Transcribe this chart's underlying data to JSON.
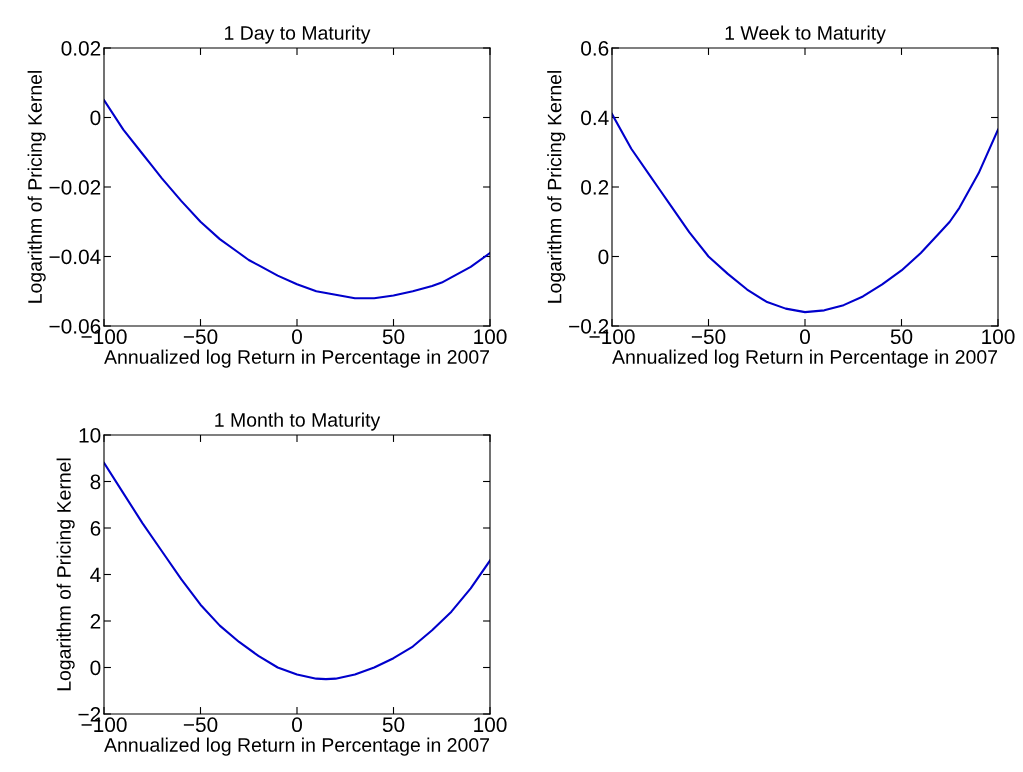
{
  "chart_data": [
    {
      "type": "line",
      "title": "1 Day to Maturity",
      "xlabel": "Annualized log Return in Percentage in 2007",
      "ylabel": "Logarithm of Pricing Kernel",
      "x": [
        -100,
        -90,
        -80,
        -75,
        -70,
        -60,
        -50,
        -40,
        -30,
        -25,
        -20,
        -10,
        0,
        10,
        20,
        25,
        30,
        35,
        40,
        50,
        60,
        70,
        75,
        80,
        90,
        100
      ],
      "series": [
        {
          "color": "#0000cc",
          "values": [
            0.005,
            -0.0035,
            -0.0105,
            -0.014,
            -0.0175,
            -0.024,
            -0.03,
            -0.035,
            -0.039,
            -0.041,
            -0.0425,
            -0.0455,
            -0.048,
            -0.05,
            -0.051,
            -0.0515,
            -0.052,
            -0.052,
            -0.052,
            -0.0512,
            -0.05,
            -0.0485,
            -0.0475,
            -0.046,
            -0.043,
            -0.039
          ]
        }
      ],
      "xlim": [
        -100,
        100
      ],
      "xticks": [
        -100,
        -50,
        0,
        50,
        100
      ],
      "ylim": [
        -0.06,
        0.02
      ],
      "yticks": [
        -0.06,
        -0.04,
        -0.02,
        0,
        0.02
      ],
      "grid": false,
      "legend": false
    },
    {
      "type": "line",
      "title": "1 Week to Maturity",
      "xlabel": "Annualized log Return in Percentage in 2007",
      "ylabel": "Logarithm of Pricing Kernel",
      "x": [
        -100,
        -90,
        -80,
        -75,
        -70,
        -60,
        -50,
        -40,
        -30,
        -20,
        -10,
        0,
        10,
        20,
        30,
        40,
        50,
        60,
        70,
        75,
        80,
        90,
        100
      ],
      "series": [
        {
          "color": "#0000cc",
          "values": [
            0.41,
            0.31,
            0.23,
            0.19,
            0.15,
            0.07,
            0.0,
            -0.05,
            -0.095,
            -0.13,
            -0.15,
            -0.16,
            -0.155,
            -0.14,
            -0.115,
            -0.08,
            -0.04,
            0.01,
            0.07,
            0.1,
            0.14,
            0.24,
            0.365
          ]
        }
      ],
      "xlim": [
        -100,
        100
      ],
      "xticks": [
        -100,
        -50,
        0,
        50,
        100
      ],
      "ylim": [
        -0.2,
        0.6
      ],
      "yticks": [
        -0.2,
        0,
        0.2,
        0.4,
        0.6
      ],
      "grid": false,
      "legend": false
    },
    {
      "type": "line",
      "title": "1 Month to Maturity",
      "xlabel": "Annualized log Return in Percentage in 2007",
      "ylabel": "Logarithm of Pricing Kernel",
      "x": [
        -100,
        -90,
        -80,
        -70,
        -60,
        -50,
        -40,
        -30,
        -20,
        -10,
        0,
        10,
        15,
        20,
        30,
        40,
        50,
        60,
        70,
        80,
        90,
        100
      ],
      "series": [
        {
          "color": "#0000cc",
          "values": [
            8.8,
            7.5,
            6.2,
            5.0,
            3.8,
            2.7,
            1.8,
            1.1,
            0.5,
            0.0,
            -0.3,
            -0.48,
            -0.5,
            -0.48,
            -0.3,
            0.0,
            0.4,
            0.9,
            1.6,
            2.4,
            3.4,
            4.6
          ]
        }
      ],
      "xlim": [
        -100,
        100
      ],
      "xticks": [
        -100,
        -50,
        0,
        50,
        100
      ],
      "ylim": [
        -2,
        10
      ],
      "yticks": [
        -2,
        0,
        2,
        4,
        6,
        8,
        10
      ],
      "grid": false,
      "legend": false
    }
  ]
}
